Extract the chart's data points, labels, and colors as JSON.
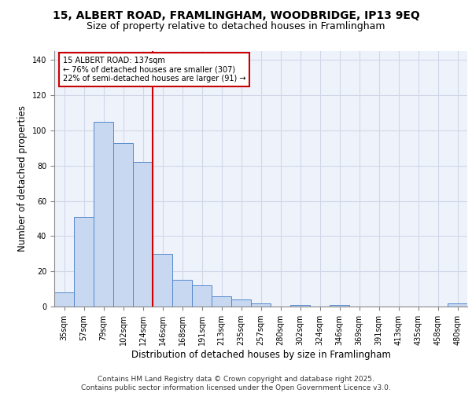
{
  "title_line1": "15, ALBERT ROAD, FRAMLINGHAM, WOODBRIDGE, IP13 9EQ",
  "title_line2": "Size of property relative to detached houses in Framlingham",
  "xlabel": "Distribution of detached houses by size in Framlingham",
  "ylabel": "Number of detached properties",
  "categories": [
    "35sqm",
    "57sqm",
    "79sqm",
    "102sqm",
    "124sqm",
    "146sqm",
    "168sqm",
    "191sqm",
    "213sqm",
    "235sqm",
    "257sqm",
    "280sqm",
    "302sqm",
    "324sqm",
    "346sqm",
    "369sqm",
    "391sqm",
    "413sqm",
    "435sqm",
    "458sqm",
    "480sqm"
  ],
  "values": [
    8,
    51,
    105,
    93,
    82,
    30,
    15,
    12,
    6,
    4,
    2,
    0,
    1,
    0,
    1,
    0,
    0,
    0,
    0,
    0,
    2
  ],
  "bar_color": "#c8d8f0",
  "bar_edge_color": "#5588cc",
  "grid_color": "#d0d8e8",
  "background_color": "#eef2fb",
  "vline_color": "#cc0000",
  "annotation_text": "15 ALBERT ROAD: 137sqm\n← 76% of detached houses are smaller (307)\n22% of semi-detached houses are larger (91) →",
  "annotation_box_color": "#cc0000",
  "ylim": [
    0,
    145
  ],
  "footer_line1": "Contains HM Land Registry data © Crown copyright and database right 2025.",
  "footer_line2": "Contains public sector information licensed under the Open Government Licence v3.0.",
  "title_fontsize": 10,
  "subtitle_fontsize": 9,
  "tick_fontsize": 7,
  "ylabel_fontsize": 8.5,
  "xlabel_fontsize": 8.5,
  "footer_fontsize": 6.5
}
